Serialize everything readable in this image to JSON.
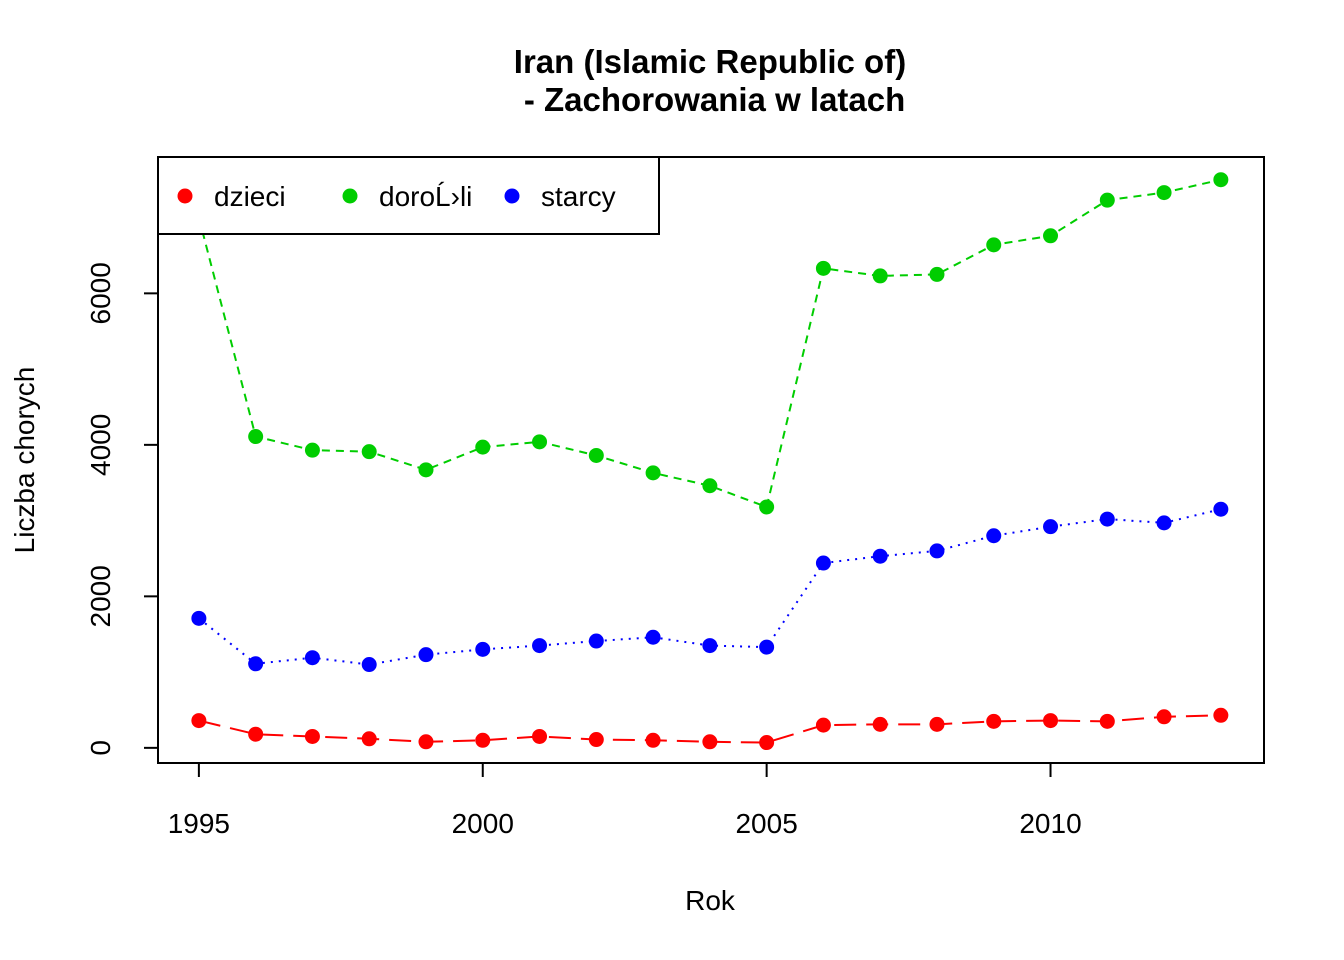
{
  "chart_data": {
    "type": "line",
    "title": "Iran (Islamic Republic of)",
    "subtitle": " - Zachorowania w latach",
    "xlabel": "Rok",
    "ylabel": "Liczba chorych",
    "x": [
      1995,
      1996,
      1997,
      1998,
      1999,
      2000,
      2001,
      2002,
      2003,
      2004,
      2005,
      2006,
      2007,
      2008,
      2009,
      2010,
      2011,
      2012,
      2013
    ],
    "xlim": [
      1994.28,
      2013.76
    ],
    "ylim": [
      -200,
      7800
    ],
    "xticks": [
      1995,
      2000,
      2005,
      2010
    ],
    "yticks": [
      0,
      2000,
      4000,
      6000
    ],
    "grid": false,
    "legend_position": "top-left",
    "series": [
      {
        "name": "dzieci",
        "color": "#ff0000",
        "line_style": "longdash",
        "values": [
          360,
          180,
          150,
          120,
          80,
          100,
          150,
          110,
          100,
          80,
          70,
          300,
          310,
          310,
          350,
          360,
          350,
          410,
          430
        ]
      },
      {
        "name": "doroĹ›li",
        "color": "#00cd00",
        "line_style": "dashed",
        "values": [
          7000,
          4110,
          3930,
          3910,
          3670,
          3970,
          4040,
          3860,
          3630,
          3460,
          3180,
          6330,
          6230,
          6250,
          6640,
          6760,
          7230,
          7330,
          7500
        ]
      },
      {
        "name": "starcy",
        "color": "#0000ff",
        "line_style": "dotted",
        "values": [
          1710,
          1110,
          1190,
          1100,
          1230,
          1300,
          1350,
          1410,
          1460,
          1350,
          1330,
          2440,
          2530,
          2600,
          2800,
          2920,
          3020,
          2970,
          3150
        ]
      }
    ]
  }
}
